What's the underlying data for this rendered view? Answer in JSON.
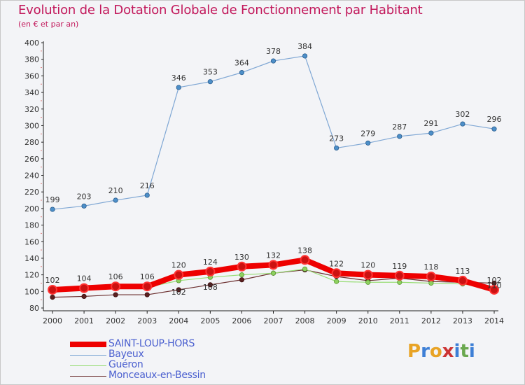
{
  "title": "Evolution de la Dotation Globale de Fonctionnement par Habitant",
  "subtitle": "(en € et par an)",
  "logo": {
    "letters": [
      "P",
      "r",
      "o",
      "x",
      "i",
      "t",
      "i"
    ],
    "colors": [
      "#e8a325",
      "#3d7fd6",
      "#e8a325",
      "#cc3333",
      "#3d7fd6",
      "#6aa84f",
      "#3d7fd6"
    ]
  },
  "chart_data": {
    "type": "line",
    "x": [
      "2000",
      "2001",
      "2002",
      "2003",
      "2004",
      "2005",
      "2006",
      "2007",
      "2008",
      "2009",
      "2010",
      "2011",
      "2012",
      "2013",
      "2014"
    ],
    "ylim": [
      80,
      400
    ],
    "yticks": [
      "80",
      "100",
      "120",
      "140",
      "160",
      "180",
      "200",
      "220",
      "240",
      "260",
      "280",
      "300",
      "320",
      "340",
      "360",
      "380",
      "400"
    ],
    "grid": false,
    "legend_position": "bottom-left",
    "series": [
      {
        "name": "SAINT-LOUP-HORS",
        "color": "#ee0000",
        "width": 8,
        "values": [
          102,
          104,
          106,
          106,
          120,
          124,
          130,
          132,
          138,
          122,
          120,
          119,
          118,
          113,
          102
        ],
        "labels": [
          "102",
          "104",
          "106",
          "106",
          "120",
          "124",
          "130",
          "132",
          "138",
          "122",
          "120",
          "119",
          "118",
          "113",
          "102"
        ]
      },
      {
        "name": "Bayeux",
        "color": "#7fa7d4",
        "width": 1.2,
        "values": [
          199,
          203,
          210,
          216,
          346,
          353,
          364,
          378,
          384,
          273,
          279,
          287,
          291,
          302,
          296
        ],
        "labels": [
          "199",
          "203",
          "210",
          "216",
          "346",
          "353",
          "364",
          "378",
          "384",
          "273",
          "279",
          "287",
          "291",
          "302",
          "296"
        ]
      },
      {
        "name": "Guéron",
        "color": "#99dd77",
        "width": 1.2,
        "values": [
          102,
          103,
          105,
          105,
          113,
          117,
          120,
          122,
          127,
          112,
          111,
          111,
          110,
          109,
          103
        ],
        "labels": [
          "",
          "",
          "",
          "",
          "",
          "",
          "",
          "",
          "",
          "",
          "",
          "",
          "",
          "",
          ""
        ]
      },
      {
        "name": "Monceaux-en-Bessin",
        "color": "#6b2e2e",
        "width": 1.2,
        "values": [
          93,
          94,
          96,
          96,
          102,
          108,
          114,
          122,
          126,
          118,
          113,
          116,
          112,
          111,
          110
        ],
        "labels": [
          "",
          "",
          "",
          "",
          "102",
          "108",
          "",
          "",
          "",
          "",
          "",
          "",
          "",
          "",
          "110"
        ]
      }
    ]
  }
}
